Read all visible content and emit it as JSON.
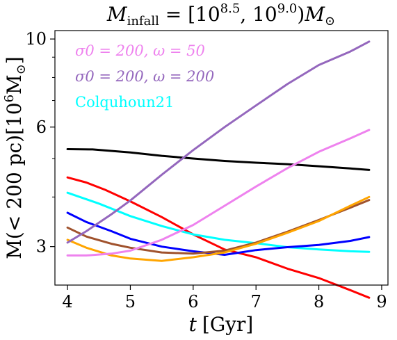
{
  "chart_data": {
    "type": "line",
    "title": "M_infall = [10^8.5, 10^9.0) M_⊙",
    "title_parts": {
      "main": "M",
      "sub": "infall",
      "eq": " = [10",
      "exp1": "8.5",
      "mid": ", 10",
      "exp2": "9.0",
      "close": ")",
      "m2": "M",
      "sun": "⊙"
    },
    "xlabel": "t [Gyr]",
    "xlabel_parts": {
      "var": "t",
      "unit": "[Gyr]"
    },
    "ylabel": "M(< 200 pc)[10^6 M_⊙]",
    "ylabel_parts": {
      "a": "M(< 200 pc)[10",
      "exp": "6",
      "b": "M",
      "sun": "⊙",
      "c": "]"
    },
    "xlim": [
      3.8,
      9.1
    ],
    "ylim": [
      2.4,
      10.5
    ],
    "yscale": "log",
    "xticks": [
      4,
      5,
      6,
      7,
      8,
      9
    ],
    "xtick_labels": [
      "4",
      "5",
      "6",
      "7",
      "8",
      "9"
    ],
    "yticks": [
      3,
      6,
      10
    ],
    "ytick_labels": [
      "3",
      "6",
      "10"
    ],
    "yminor_ticks": [
      4,
      5,
      7,
      8,
      9
    ],
    "grid": false,
    "legend": {
      "placement": "top-left",
      "entries": [
        {
          "text": "σ0 = 200, ω = 50",
          "color": "#ee82ee"
        },
        {
          "text": "σ0 = 200, ω = 200",
          "color": "#9467bd"
        },
        {
          "text": "Colquhoun21",
          "color": "#00ffff"
        }
      ]
    },
    "series": [
      {
        "color": "#000000",
        "x": [
          4.0,
          4.4,
          5.0,
          5.5,
          6.0,
          6.5,
          7.0,
          7.5,
          8.0,
          8.5,
          8.8
        ],
        "y": [
          5.28,
          5.27,
          5.18,
          5.08,
          5.0,
          4.93,
          4.88,
          4.84,
          4.78,
          4.72,
          4.68
        ]
      },
      {
        "color": "#ff0000",
        "x": [
          4.0,
          4.3,
          4.6,
          5.0,
          5.5,
          6.0,
          6.5,
          7.0,
          7.5,
          8.0,
          8.5,
          8.8
        ],
        "y": [
          4.48,
          4.35,
          4.17,
          3.9,
          3.56,
          3.22,
          2.95,
          2.82,
          2.64,
          2.5,
          2.33,
          2.23
        ]
      },
      {
        "color": "#00ffff",
        "x": [
          4.0,
          4.5,
          5.0,
          5.5,
          6.0,
          6.5,
          7.0,
          7.5,
          8.0,
          8.5,
          8.8
        ],
        "y": [
          4.1,
          3.85,
          3.58,
          3.38,
          3.22,
          3.12,
          3.06,
          2.99,
          2.95,
          2.92,
          2.91
        ]
      },
      {
        "color": "#0000ff",
        "x": [
          4.0,
          4.3,
          4.7,
          5.0,
          5.5,
          6.0,
          6.5,
          7.0,
          7.5,
          8.0,
          8.5,
          8.8
        ],
        "y": [
          3.65,
          3.46,
          3.28,
          3.14,
          3.0,
          2.92,
          2.86,
          2.94,
          2.99,
          3.03,
          3.1,
          3.17
        ]
      },
      {
        "color": "#a0522d",
        "x": [
          4.0,
          4.3,
          4.7,
          5.0,
          5.5,
          6.0,
          6.5,
          7.0,
          7.5,
          8.0,
          8.5,
          8.8
        ],
        "y": [
          3.35,
          3.18,
          3.05,
          2.98,
          2.9,
          2.88,
          2.93,
          3.07,
          3.27,
          3.5,
          3.76,
          3.93
        ]
      },
      {
        "color": "#ffa500",
        "x": [
          4.0,
          4.3,
          4.7,
          5.0,
          5.5,
          6.0,
          6.5,
          7.0,
          7.5,
          8.0,
          8.5,
          8.8
        ],
        "y": [
          3.12,
          2.98,
          2.85,
          2.8,
          2.76,
          2.82,
          2.9,
          3.05,
          3.25,
          3.48,
          3.8,
          4.0
        ]
      },
      {
        "color": "#ee82ee",
        "x": [
          4.0,
          4.3,
          4.7,
          5.0,
          5.5,
          6.0,
          6.5,
          7.0,
          7.5,
          8.0,
          8.5,
          8.8
        ],
        "y": [
          2.85,
          2.85,
          2.88,
          2.93,
          3.12,
          3.4,
          3.8,
          4.25,
          4.73,
          5.2,
          5.62,
          5.9
        ]
      },
      {
        "color": "#9467bd",
        "x": [
          4.0,
          4.3,
          4.7,
          5.0,
          5.5,
          6.0,
          6.5,
          7.0,
          7.5,
          8.0,
          8.5,
          8.8
        ],
        "y": [
          3.07,
          3.28,
          3.62,
          3.92,
          4.55,
          5.25,
          6.0,
          6.8,
          7.7,
          8.6,
          9.3,
          9.85
        ]
      }
    ]
  }
}
